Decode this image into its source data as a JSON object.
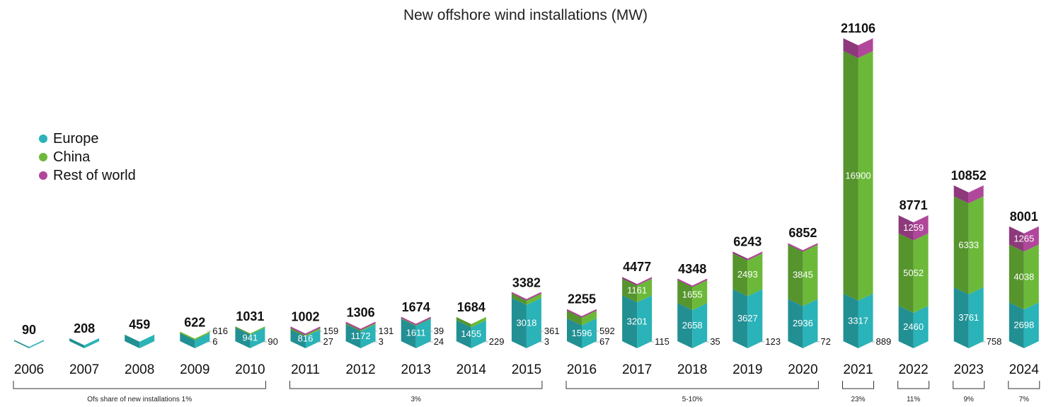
{
  "chart_data": {
    "type": "bar",
    "title": "New offshore wind installations (MW)",
    "categories": [
      "2006",
      "2007",
      "2008",
      "2009",
      "2010",
      "2011",
      "2012",
      "2013",
      "2014",
      "2015",
      "2016",
      "2017",
      "2018",
      "2019",
      "2020",
      "2021",
      "2022",
      "2023",
      "2024"
    ],
    "series": [
      {
        "name": "Europe",
        "color": "#2ab3b8",
        "values": [
          90,
          208,
          459,
          616,
          941,
          816,
          1172,
          1611,
          1455,
          3018,
          1596,
          3201,
          2658,
          3627,
          2936,
          3317,
          2460,
          3761,
          2698
        ]
      },
      {
        "name": "China",
        "color": "#6cb93a",
        "values": [
          0,
          0,
          0,
          6,
          90,
          159,
          131,
          39,
          229,
          361,
          592,
          1161,
          1655,
          2493,
          3845,
          16900,
          5052,
          6333,
          4038
        ]
      },
      {
        "name": "Rest of world",
        "color": "#b0479a",
        "values": [
          0,
          0,
          0,
          0,
          0,
          27,
          3,
          24,
          0,
          3,
          67,
          115,
          35,
          123,
          72,
          889,
          1259,
          758,
          1265
        ]
      }
    ],
    "totals": [
      90,
      208,
      459,
      622,
      1031,
      1002,
      1306,
      1674,
      1684,
      3382,
      2255,
      4477,
      4348,
      6243,
      6852,
      21106,
      8771,
      10852,
      8001
    ],
    "inside_labels": [
      [],
      [],
      [],
      [],
      [
        {
          "series": 0,
          "text": "941"
        }
      ],
      [
        {
          "series": 0,
          "text": "816"
        }
      ],
      [
        {
          "series": 0,
          "text": "1172"
        }
      ],
      [
        {
          "series": 0,
          "text": "1611"
        }
      ],
      [
        {
          "series": 0,
          "text": "1455"
        }
      ],
      [
        {
          "series": 0,
          "text": "3018"
        }
      ],
      [
        {
          "series": 0,
          "text": "1596"
        }
      ],
      [
        {
          "series": 0,
          "text": "3201"
        },
        {
          "series": 1,
          "text": "1161"
        }
      ],
      [
        {
          "series": 0,
          "text": "2658"
        },
        {
          "series": 1,
          "text": "1655"
        }
      ],
      [
        {
          "series": 0,
          "text": "3627"
        },
        {
          "series": 1,
          "text": "2493"
        }
      ],
      [
        {
          "series": 0,
          "text": "2936"
        },
        {
          "series": 1,
          "text": "3845"
        }
      ],
      [
        {
          "series": 0,
          "text": "3317"
        },
        {
          "series": 1,
          "text": "16900"
        }
      ],
      [
        {
          "series": 0,
          "text": "2460"
        },
        {
          "series": 1,
          "text": "5052"
        },
        {
          "series": 2,
          "text": "1259"
        }
      ],
      [
        {
          "series": 0,
          "text": "3761"
        },
        {
          "series": 1,
          "text": "6333"
        }
      ],
      [
        {
          "series": 0,
          "text": "2698"
        },
        {
          "series": 1,
          "text": "4038"
        },
        {
          "series": 2,
          "text": "1265"
        }
      ]
    ],
    "side_labels": [
      [],
      [],
      [],
      [
        "616",
        "6"
      ],
      [
        "90"
      ],
      [
        "159",
        "27"
      ],
      [
        "131",
        "3"
      ],
      [
        "39",
        "24"
      ],
      [
        "229"
      ],
      [
        "361",
        "3"
      ],
      [
        "592",
        "67"
      ],
      [
        "115"
      ],
      [
        "35"
      ],
      [
        "123"
      ],
      [
        "72"
      ],
      [
        "889"
      ],
      [],
      [
        "758"
      ],
      []
    ],
    "share_groups": [
      {
        "first": 0,
        "last": 4,
        "label": "Ofs share of new installations 1%"
      },
      {
        "first": 5,
        "last": 9,
        "label": "3%"
      },
      {
        "first": 10,
        "last": 14,
        "label": "5-10%"
      },
      {
        "first": 15,
        "last": 15,
        "label": "23%"
      },
      {
        "first": 16,
        "last": 16,
        "label": "11%"
      },
      {
        "first": 17,
        "last": 17,
        "label": "9%"
      },
      {
        "first": 18,
        "last": 18,
        "label": "7%"
      }
    ],
    "legend_position": "left",
    "grid": false
  }
}
